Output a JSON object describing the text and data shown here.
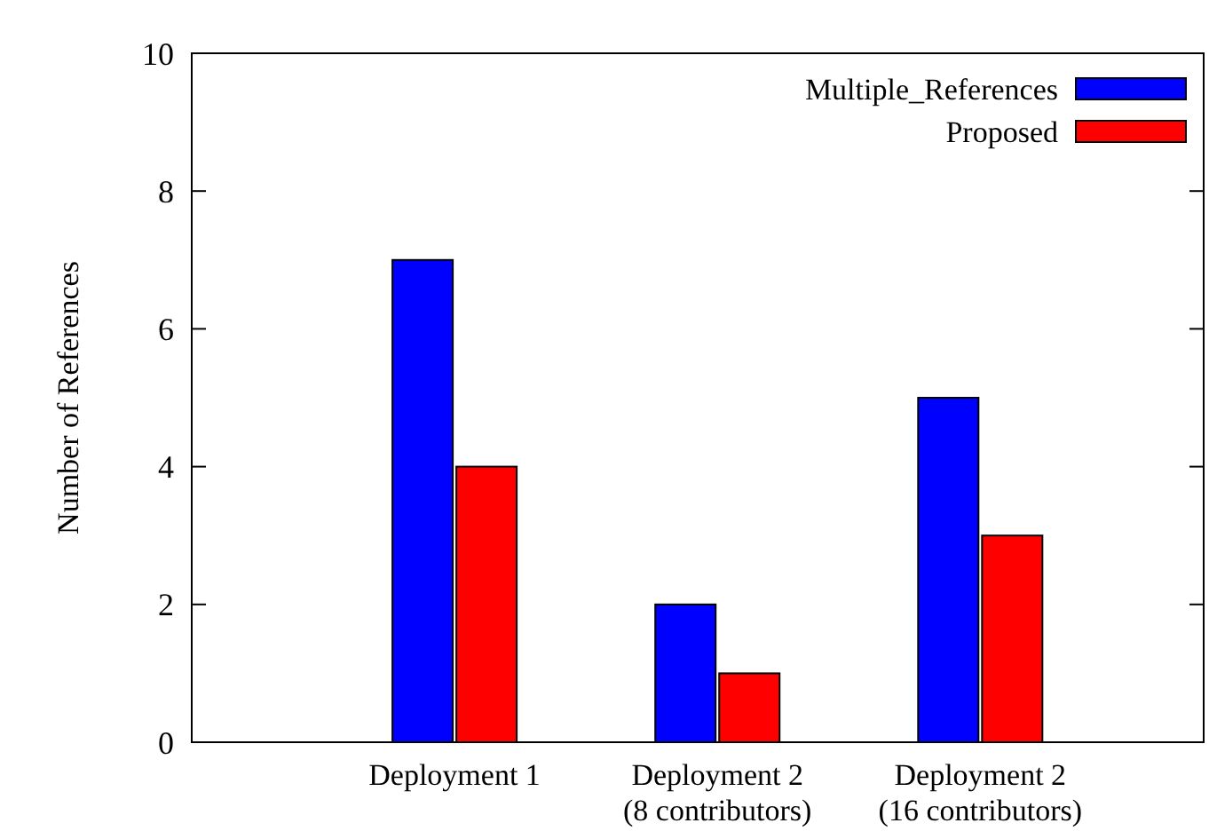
{
  "chart_data": {
    "type": "bar",
    "ylabel": "Number of References",
    "categories": [
      "Deployment 1",
      "Deployment 2\n(8 contributors)",
      "Deployment 2\n(16 contributors)"
    ],
    "series": [
      {
        "name": "Multiple_References",
        "color": "#0000ff",
        "values": [
          7,
          2,
          5
        ]
      },
      {
        "name": "Proposed",
        "color": "#ff0000",
        "values": [
          4,
          1,
          3
        ]
      }
    ],
    "ylim": [
      0,
      10
    ],
    "yticks": [
      0,
      2,
      4,
      6,
      8,
      10
    ],
    "grid": false,
    "legend": "top right"
  }
}
